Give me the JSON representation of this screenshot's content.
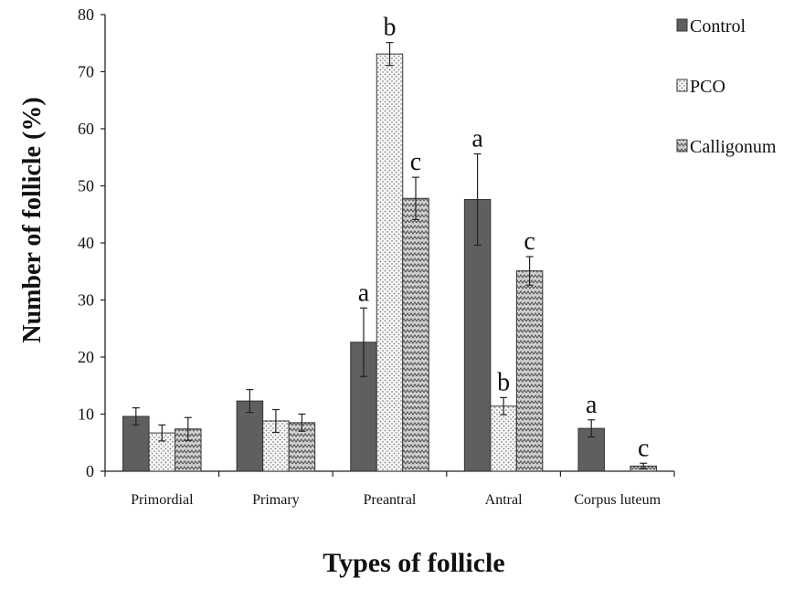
{
  "chart_data": {
    "type": "bar",
    "xlabel": "Types of follicle",
    "ylabel": "Number of follicle (%)",
    "ylim": [
      0,
      80
    ],
    "yticks": [
      0,
      10,
      20,
      30,
      40,
      50,
      60,
      70,
      80
    ],
    "grid": false,
    "legend_position": "top-right",
    "categories": [
      "Primordial",
      "Primary",
      "Preantral",
      "Antral",
      "Corpus luteum"
    ],
    "series": [
      {
        "name": "Control",
        "fill": "#5f5f5f",
        "values": [
          9.6,
          12.3,
          22.6,
          47.6,
          7.5
        ],
        "errors": [
          1.5,
          2.0,
          6.0,
          8.0,
          1.5
        ],
        "letters": [
          "",
          "",
          "a",
          "a",
          "a"
        ]
      },
      {
        "name": "PCO",
        "fill": "#f2f2f2",
        "values": [
          6.7,
          8.8,
          73.1,
          11.4,
          0
        ],
        "errors": [
          1.4,
          2.0,
          2.0,
          1.5,
          0
        ],
        "letters": [
          "",
          "",
          "b",
          "b",
          ""
        ]
      },
      {
        "name": "Calligonum",
        "fill": "#bdbdbd",
        "values": [
          7.4,
          8.5,
          47.8,
          35.1,
          0.9
        ],
        "errors": [
          2.0,
          1.5,
          3.7,
          2.5,
          0.5
        ],
        "letters": [
          "",
          "",
          "c",
          "c",
          "c"
        ]
      }
    ]
  }
}
